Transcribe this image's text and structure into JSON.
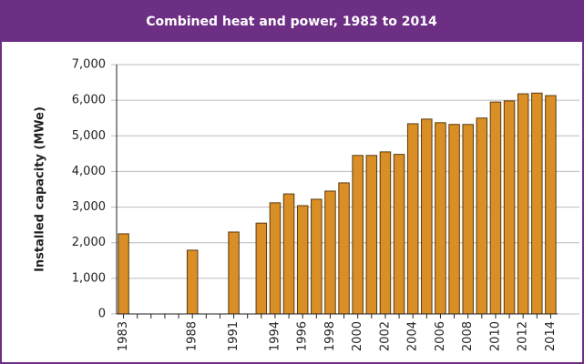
{
  "chart_data": {
    "type": "bar",
    "title": "Combined heat and power, 1983 to 2014",
    "y_label": "Installed capacity (MWe)",
    "categories": [
      "1983",
      null,
      null,
      null,
      null,
      "1988",
      null,
      null,
      "1991",
      null,
      null,
      "1994",
      null,
      "1996",
      null,
      "1998",
      null,
      "2000",
      null,
      "2002",
      null,
      "2004",
      null,
      "2006",
      null,
      "2008",
      null,
      "2010",
      null,
      "2012",
      null,
      "2014"
    ],
    "values": [
      2250,
      null,
      null,
      null,
      null,
      1790,
      null,
      null,
      2300,
      null,
      2550,
      3120,
      3370,
      3040,
      3220,
      3450,
      3680,
      4450,
      4450,
      4550,
      4480,
      5340,
      5470,
      5370,
      5320,
      5320,
      5500,
      5950,
      5980,
      6180,
      6200,
      6130
    ],
    "color": "#d98e26",
    "ylim": [
      0,
      7000
    ],
    "yticks": [
      0,
      {
        "value": 1000,
        "label": "1,000"
      },
      {
        "value": 2000,
        "label": "2,000"
      },
      {
        "value": 3000,
        "label": "3,000"
      },
      {
        "value": 4000,
        "label": "4,000"
      },
      {
        "value": 5000,
        "label": "5,000"
      },
      {
        "value": 6000,
        "label": "6,000"
      },
      {
        "value": 7000,
        "label": "7,000"
      }
    ],
    "grid": true
  }
}
